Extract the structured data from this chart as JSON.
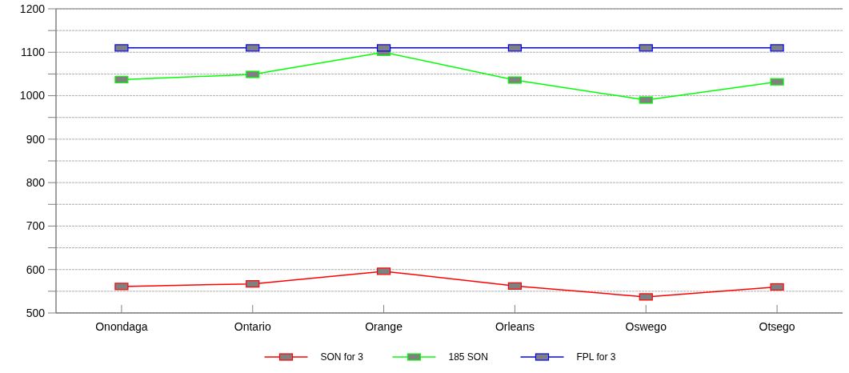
{
  "chart_data": {
    "type": "line",
    "categories": [
      "Onondaga",
      "Ontario",
      "Orange",
      "Orleans",
      "Oswego",
      "Otsego"
    ],
    "series": [
      {
        "name": "SON for 3",
        "color": "#ff0000",
        "values": [
          561,
          567,
          596,
          562,
          537,
          560
        ]
      },
      {
        "name": "185 SON",
        "color": "#00ff00",
        "values": [
          1037,
          1049,
          1100,
          1036,
          990,
          1032
        ]
      },
      {
        "name": "FPL for 3",
        "color": "#0000ff",
        "values": [
          1110,
          1110,
          1110,
          1110,
          1110,
          1110
        ]
      }
    ],
    "ylim": [
      500,
      1200
    ],
    "yticks": [
      500,
      {
        "value": 550,
        "label": null
      },
      600,
      {
        "value": 650,
        "label": null
      },
      700,
      {
        "value": 750,
        "label": null
      },
      800,
      {
        "value": 850,
        "label": null
      },
      900,
      {
        "value": 950,
        "label": null
      },
      1000,
      {
        "value": 1050,
        "label": null
      },
      1100,
      {
        "value": 1150,
        "label": null
      },
      1200
    ],
    "grid": true,
    "legend": "bottom",
    "marker": "square",
    "line_style": "solid"
  }
}
